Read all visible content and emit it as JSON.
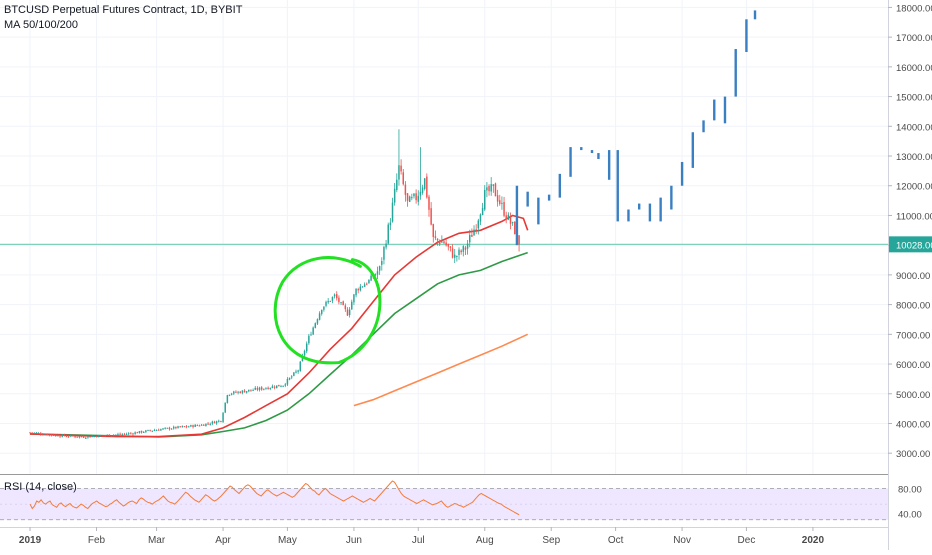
{
  "header": {
    "title": "BTCUSD Perpetual Futures Contract, 1D, BYBIT",
    "indicator": "MA 50/100/200"
  },
  "rsi": {
    "label": "RSI (14, close)",
    "ticks": [
      "80.00",
      "40.00"
    ]
  },
  "colors": {
    "up": "#26a69a",
    "down": "#ef5350",
    "projection": "#3a7fc1",
    "ma50": "#e53935",
    "ma100": "#2e9a45",
    "ma200": "#ff8a50",
    "hline": "#7fd1b9",
    "annotation": "#22e022",
    "rsi_line": "#f57c3a",
    "rsi_band": "#efe6ff",
    "axis_text": "#4a4a4a",
    "last_price_bg": "#26a69a"
  },
  "chart_data": {
    "type": "candlestick",
    "price_axis": {
      "ticks": [
        3000,
        4000,
        5000,
        6000,
        7000,
        8000,
        9000,
        10000,
        11000,
        12000,
        13000,
        14000,
        15000,
        16000,
        17000,
        18000
      ],
      "tick_labels": [
        "3000.00",
        "4000.00",
        "5000.00",
        "6000.00",
        "7000.00",
        "8000.00",
        "9000.00",
        "10000.00",
        "11000.00",
        "12000.00",
        "13000.00",
        "14000.00",
        "15000.00",
        "16000.00",
        "17000.00",
        "18000.00"
      ],
      "ylim": [
        2300,
        18250
      ]
    },
    "time_axis": {
      "labels": [
        "2019",
        "Feb",
        "Mar",
        "Apr",
        "May",
        "Jun",
        "Jul",
        "Aug",
        "Sep",
        "Oct",
        "Nov",
        "Dec",
        "2020"
      ],
      "label_days": [
        0,
        31,
        59,
        90,
        120,
        151,
        181,
        212,
        243,
        273,
        304,
        334,
        365
      ],
      "xlim_days": [
        -14,
        400
      ]
    },
    "last_price": {
      "value": 10028,
      "label": "10028.00"
    },
    "candles": [],
    "projection": [
      {
        "day": 227,
        "open": 10000,
        "close": 12000
      },
      {
        "day": 232,
        "open": 11300,
        "close": 11800
      },
      {
        "day": 237,
        "open": 10700,
        "close": 11600
      },
      {
        "day": 242,
        "open": 11700,
        "close": 11500
      },
      {
        "day": 247,
        "open": 11600,
        "close": 12400
      },
      {
        "day": 252,
        "open": 12300,
        "close": 13300
      },
      {
        "day": 257,
        "open": 13300,
        "close": 13200
      },
      {
        "day": 262,
        "open": 13200,
        "close": 13100
      },
      {
        "day": 265,
        "open": 13100,
        "close": 12900
      },
      {
        "day": 270,
        "open": 12200,
        "close": 13200
      },
      {
        "day": 274,
        "open": 13200,
        "close": 10800
      },
      {
        "day": 279,
        "open": 10800,
        "close": 11200
      },
      {
        "day": 284,
        "open": 11200,
        "close": 11400
      },
      {
        "day": 289,
        "open": 11400,
        "close": 10800
      },
      {
        "day": 294,
        "open": 10800,
        "close": 11600
      },
      {
        "day": 299,
        "open": 11200,
        "close": 12000
      },
      {
        "day": 304,
        "open": 12000,
        "close": 12800
      },
      {
        "day": 309,
        "open": 12600,
        "close": 13800
      },
      {
        "day": 314,
        "open": 13800,
        "close": 14200
      },
      {
        "day": 319,
        "open": 14200,
        "close": 14900
      },
      {
        "day": 324,
        "open": 14100,
        "close": 15000
      },
      {
        "day": 329,
        "open": 15000,
        "close": 16600
      },
      {
        "day": 334,
        "open": 16500,
        "close": 17600
      },
      {
        "day": 338,
        "open": 17600,
        "close": 17900
      }
    ],
    "ma50": [
      [
        0,
        3650
      ],
      [
        20,
        3600
      ],
      [
        40,
        3560
      ],
      [
        60,
        3560
      ],
      [
        80,
        3640
      ],
      [
        90,
        3850
      ],
      [
        100,
        4200
      ],
      [
        110,
        4600
      ],
      [
        120,
        5000
      ],
      [
        130,
        5700
      ],
      [
        140,
        6500
      ],
      [
        150,
        7200
      ],
      [
        160,
        8100
      ],
      [
        170,
        9000
      ],
      [
        180,
        9600
      ],
      [
        190,
        10100
      ],
      [
        200,
        10400
      ],
      [
        210,
        10500
      ],
      [
        220,
        10800
      ],
      [
        225,
        11000
      ],
      [
        230,
        10900
      ],
      [
        232,
        10500
      ]
    ],
    "ma100": [
      [
        0,
        3650
      ],
      [
        30,
        3600
      ],
      [
        60,
        3550
      ],
      [
        80,
        3620
      ],
      [
        90,
        3730
      ],
      [
        100,
        3850
      ],
      [
        110,
        4100
      ],
      [
        120,
        4450
      ],
      [
        130,
        5000
      ],
      [
        140,
        5650
      ],
      [
        150,
        6300
      ],
      [
        160,
        7000
      ],
      [
        170,
        7700
      ],
      [
        180,
        8200
      ],
      [
        190,
        8700
      ],
      [
        200,
        9000
      ],
      [
        210,
        9150
      ],
      [
        220,
        9450
      ],
      [
        232,
        9750
      ]
    ],
    "ma200": [
      [
        151,
        4600
      ],
      [
        160,
        4800
      ],
      [
        170,
        5100
      ],
      [
        180,
        5400
      ],
      [
        190,
        5700
      ],
      [
        200,
        6000
      ],
      [
        210,
        6300
      ],
      [
        220,
        6600
      ],
      [
        232,
        7000
      ]
    ],
    "annotation": {
      "type": "hand-drawn circle",
      "center_day": 139,
      "center_price": 7800,
      "rx_days": 25,
      "ry_price": 1750
    },
    "rsi_values": [
      55,
      48,
      52,
      60,
      58,
      62,
      57,
      55,
      58,
      60,
      54,
      52,
      50,
      55,
      57,
      53,
      51,
      54,
      56,
      52,
      50,
      49,
      52,
      55,
      53,
      50,
      48,
      52,
      56,
      58,
      60,
      57,
      55,
      53,
      51,
      52,
      55,
      57,
      60,
      62,
      58,
      55,
      52,
      54,
      57,
      59,
      60,
      58,
      56,
      62,
      65,
      63,
      60,
      58,
      57,
      55,
      58,
      60,
      62,
      65,
      68,
      64,
      60,
      58,
      57,
      55,
      58,
      62,
      66,
      70,
      74,
      72,
      68,
      65,
      62,
      60,
      58,
      62,
      66,
      70,
      68,
      65,
      62,
      60,
      62,
      65,
      68,
      72,
      76,
      80,
      84,
      82,
      78,
      75,
      72,
      76,
      80,
      84,
      86,
      84,
      80,
      76,
      72,
      70,
      68,
      72,
      76,
      78,
      75,
      72,
      70,
      68,
      70,
      72,
      74,
      72,
      70,
      68,
      66,
      68,
      72,
      76,
      80,
      84,
      88,
      86,
      82,
      78,
      76,
      72,
      70,
      74,
      78,
      80,
      76,
      72,
      70,
      68,
      66,
      64,
      62,
      60,
      62,
      64,
      66,
      68,
      66,
      64,
      62,
      60,
      58,
      60,
      62,
      64,
      62,
      60,
      64,
      68,
      72,
      76,
      80,
      84,
      88,
      92,
      90,
      84,
      78,
      72,
      68,
      66,
      64,
      62,
      60,
      58,
      56,
      58,
      60,
      62,
      60,
      58,
      56,
      54,
      55,
      56,
      58,
      60,
      56,
      52,
      50,
      52,
      54,
      56,
      55,
      53,
      52,
      50,
      52,
      54,
      56,
      58,
      62,
      66,
      70,
      72,
      70,
      68,
      66,
      64,
      62,
      60,
      58,
      56,
      55,
      52,
      50,
      48,
      46,
      44,
      42,
      40,
      38
    ]
  }
}
